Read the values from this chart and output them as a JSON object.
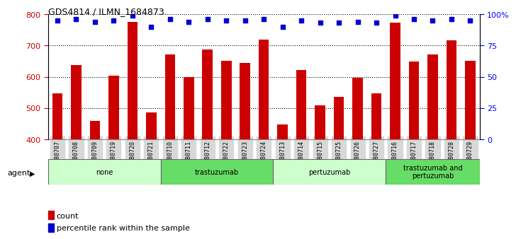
{
  "title": "GDS4814 / ILMN_1684873",
  "samples": [
    "GSM780707",
    "GSM780708",
    "GSM780709",
    "GSM780719",
    "GSM780720",
    "GSM780721",
    "GSM780710",
    "GSM780711",
    "GSM780712",
    "GSM780722",
    "GSM780723",
    "GSM780724",
    "GSM780713",
    "GSM780714",
    "GSM780715",
    "GSM780725",
    "GSM780726",
    "GSM780727",
    "GSM780716",
    "GSM780717",
    "GSM780718",
    "GSM780728",
    "GSM780729"
  ],
  "counts": [
    548,
    638,
    458,
    604,
    775,
    485,
    672,
    600,
    688,
    652,
    645,
    718,
    447,
    622,
    508,
    536,
    597,
    547,
    772,
    648,
    671,
    717,
    651
  ],
  "percentile": [
    95,
    96,
    94,
    95,
    99,
    90,
    96,
    94,
    96,
    95,
    95,
    96,
    90,
    95,
    93,
    93,
    94,
    93,
    99,
    96,
    95,
    96,
    95
  ],
  "bar_color": "#cc0000",
  "dot_color": "#0000cc",
  "ylim_left": [
    400,
    800
  ],
  "ylim_right": [
    0,
    100
  ],
  "yticks_left": [
    400,
    500,
    600,
    700,
    800
  ],
  "yticks_right": [
    0,
    25,
    50,
    75,
    100
  ],
  "groups": [
    {
      "label": "none",
      "start": 0,
      "end": 6,
      "color": "#ccffcc"
    },
    {
      "label": "trastuzumab",
      "start": 6,
      "end": 12,
      "color": "#66dd66"
    },
    {
      "label": "pertuzumab",
      "start": 12,
      "end": 18,
      "color": "#ccffcc"
    },
    {
      "label": "trastuzumab and\npertuzumab",
      "start": 18,
      "end": 23,
      "color": "#66dd66"
    }
  ],
  "agent_label": "agent",
  "legend_count_label": "count",
  "legend_pct_label": "percentile rank within the sample",
  "background_color": "#ffffff",
  "grid_color": "#000000",
  "right_axis_label_color": "#0000ff",
  "left_axis_label_color": "#cc0000",
  "bar_width": 0.55,
  "tick_bg_color": "#d8d8d8",
  "tick_border_color": "#888888"
}
